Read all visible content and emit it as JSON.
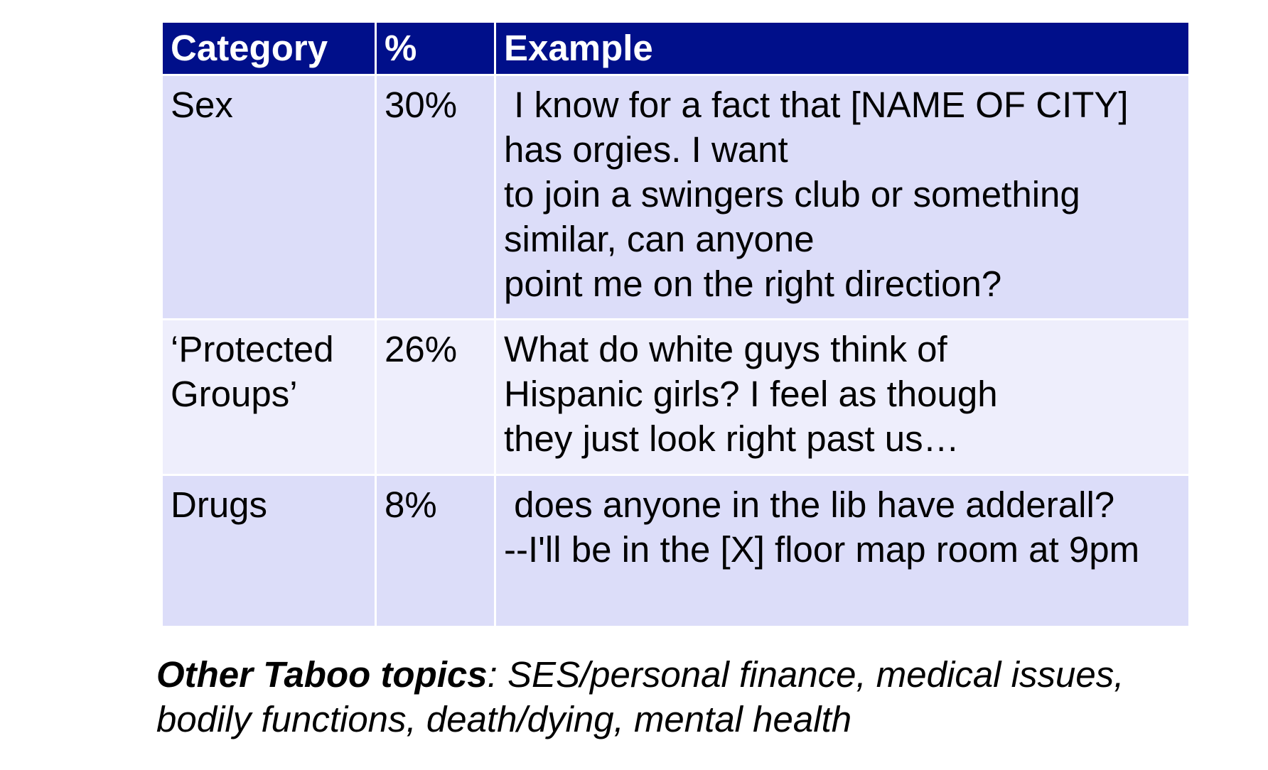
{
  "table": {
    "headers": {
      "category": "Category",
      "percent": "%",
      "example": "Example"
    },
    "rows": [
      {
        "category": "Sex",
        "percent": "30%",
        "example": " I know for a fact that [NAME OF CITY]\nhas orgies. I want\nto join a swingers club or something\nsimilar, can anyone\npoint me on the right direction?"
      },
      {
        "category": "‘Protected\nGroups’",
        "percent": "26%",
        "example": "What do white guys think of\nHispanic girls? I feel as though\nthey just look right past us…"
      },
      {
        "category": "Drugs",
        "percent": "8%",
        "example": " does anyone in the lib have adderall?\n--I'll be in the [X] floor map room at 9pm"
      }
    ]
  },
  "footnote": {
    "lead": "Other Taboo topics",
    "rest": ": SES/personal finance, medical issues,\nbodily functions, death/dying, mental health"
  },
  "colors": {
    "header_bg": "#000f8a",
    "row_bg_dark": "#dcddf9",
    "row_bg_light": "#eeeefc"
  }
}
